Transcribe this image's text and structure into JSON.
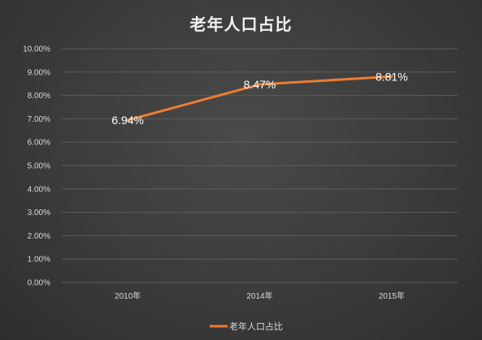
{
  "chart_data": {
    "type": "line",
    "title": "老年人口占比",
    "categories": [
      "2010年",
      "2014年",
      "2015年"
    ],
    "series": [
      {
        "name": "老年人口占比",
        "values": [
          6.94,
          8.47,
          8.81
        ],
        "labels": [
          "6.94%",
          "8.47%",
          "8.81%"
        ],
        "color": "#ed7d31"
      }
    ],
    "ylim": [
      0,
      10
    ],
    "y_ticks": [
      0,
      1,
      2,
      3,
      4,
      5,
      6,
      7,
      8,
      9,
      10
    ],
    "y_tick_labels": [
      "0.00%",
      "1.00%",
      "2.00%",
      "3.00%",
      "4.00%",
      "5.00%",
      "6.00%",
      "7.00%",
      "8.00%",
      "9.00%",
      "10.00%"
    ],
    "grid": true,
    "legend_position": "bottom"
  },
  "colors": {
    "gridline": "#5c5c5c",
    "axis_text": "#d9d9d9",
    "title_text": "#f2f2f2"
  }
}
